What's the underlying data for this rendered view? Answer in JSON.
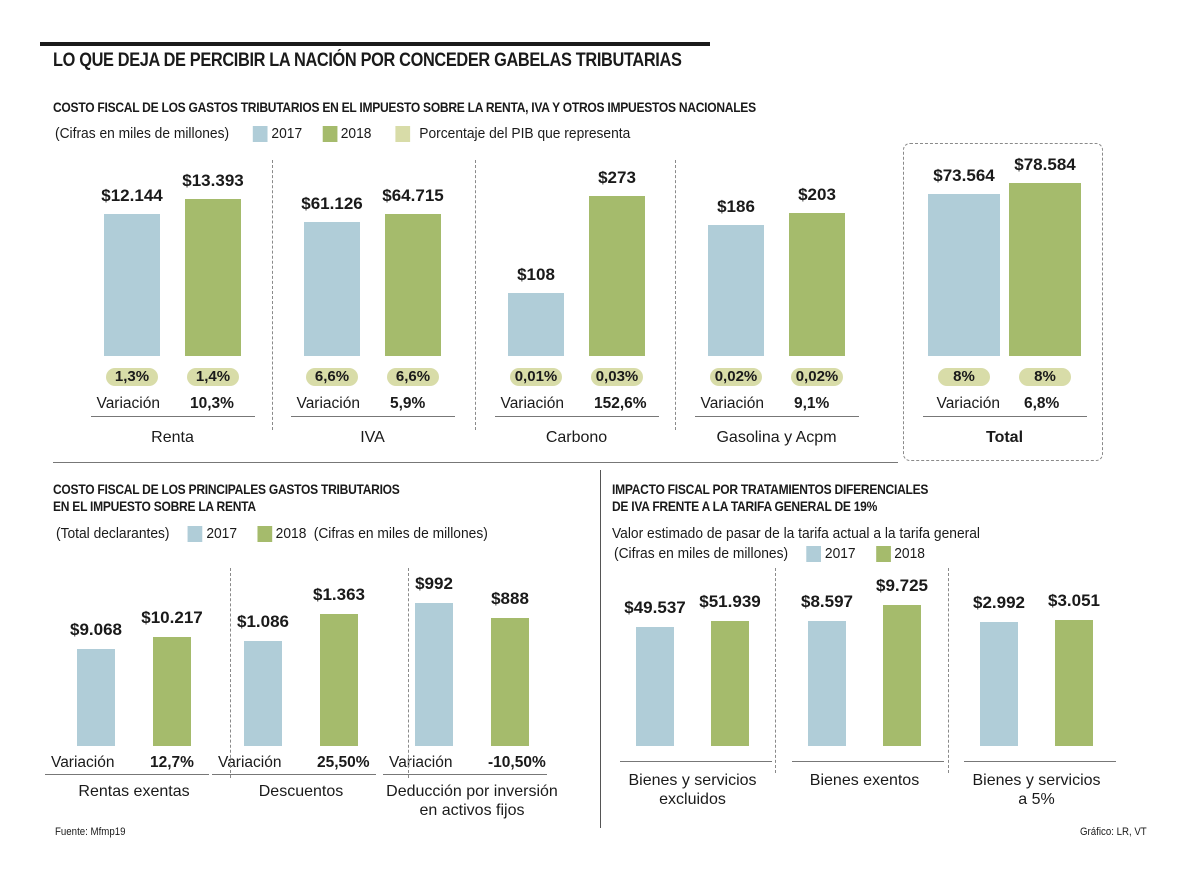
{
  "title": "LO QUE DEJA DE PERCIBIR LA NACIÓN POR CONCEDER GABELAS TRIBUTARIAS",
  "colors": {
    "y2017": "#b0cdd8",
    "y2018": "#a5bb6c",
    "pib": "#d8dca8"
  },
  "section1": {
    "title": "COSTO FISCAL DE LOS GASTOS TRIBUTARIOS EN EL IMPUESTO SOBRE LA RENTA, IVA Y OTROS IMPUESTOS NACIONALES",
    "legend": {
      "units": "(Cifras en miles de millones)",
      "y2017": "2017",
      "y2018": "2018",
      "pib": "Porcentaje del PIB que representa"
    },
    "variation_label": "Variación"
  },
  "section2": {
    "title_line1": "COSTO FISCAL DE LOS PRINCIPALES GASTOS TRIBUTARIOS",
    "title_line2": "EN EL IMPUESTO SOBRE LA RENTA",
    "legend": {
      "prefix": "(Total declarantes)",
      "y2017": "2017",
      "y2018": "2018",
      "units": "(Cifras en miles de millones)"
    },
    "variation_label": "Variación"
  },
  "section3": {
    "title_line1": "IMPACTO FISCAL POR TRATAMIENTOS DIFERENCIALES",
    "title_line2": "DE IVA FRENTE A LA TARIFA GENERAL DE 19%",
    "subtitle": "Valor estimado de pasar de la tarifa  actual a la tarifa general",
    "legend": {
      "units": "(Cifras en miles de millones)",
      "y2017": "2017",
      "y2018": "2018"
    }
  },
  "footer": {
    "source": "Fuente: Mfmp19",
    "credit": "Gráfico: LR, VT"
  },
  "chart_data": [
    {
      "type": "bar",
      "title": "COSTO FISCAL DE LOS GASTOS TRIBUTARIOS EN EL IMPUESTO SOBRE LA RENTA, IVA Y OTROS IMPUESTOS NACIONALES",
      "units": "miles de millones",
      "categories": [
        "Renta",
        "IVA",
        "Carbono",
        "Gasolina y Acpm",
        "Total"
      ],
      "series": [
        {
          "name": "2017",
          "values": [
            12144,
            61126,
            108,
            186,
            73564
          ],
          "labels": [
            "$12.144",
            "$61.126",
            "$108",
            "$186",
            "$73.564"
          ],
          "pib": [
            "1,3%",
            "6,6%",
            "0,01%",
            "0,02%",
            "8%"
          ]
        },
        {
          "name": "2018",
          "values": [
            13393,
            64715,
            273,
            203,
            78584
          ],
          "labels": [
            "$13.393",
            "$64.715",
            "$273",
            "$203",
            "$78.584"
          ],
          "pib": [
            "1,4%",
            "6,6%",
            "0,03%",
            "0,02%",
            "8%"
          ]
        }
      ],
      "variation": [
        "10,3%",
        "5,9%",
        "152,6%",
        "9,1%",
        "6,8%"
      ],
      "scale": "independent per category"
    },
    {
      "type": "bar",
      "title": "COSTO FISCAL DE LOS PRINCIPALES GASTOS TRIBUTARIOS EN EL IMPUESTO SOBRE LA RENTA",
      "units": "miles de millones",
      "categories": [
        "Rentas exentas",
        "Descuentos",
        "Deducción por inversión en activos fijos"
      ],
      "category_lines": [
        [
          "Rentas exentas"
        ],
        [
          "Descuentos"
        ],
        [
          "Deducción por inversión",
          "en activos fijos"
        ]
      ],
      "series": [
        {
          "name": "2017",
          "values": [
            9068,
            1086,
            992
          ],
          "labels": [
            "$9.068",
            "$1.086",
            "$992"
          ]
        },
        {
          "name": "2018",
          "values": [
            10217,
            1363,
            888
          ],
          "labels": [
            "$10.217",
            "$1.363",
            "$888"
          ]
        }
      ],
      "variation": [
        "12,7%",
        "25,50%",
        "-10,50%"
      ],
      "scale": "independent per category"
    },
    {
      "type": "bar",
      "title": "IMPACTO FISCAL POR TRATAMIENTOS DIFERENCIALES DE IVA FRENTE A LA TARIFA GENERAL DE 19%",
      "units": "miles de millones",
      "categories": [
        "Bienes y servicios excluidos",
        "Bienes exentos",
        "Bienes y servicios a 5%"
      ],
      "category_lines": [
        [
          "Bienes y servicios",
          "excluidos"
        ],
        [
          "Bienes exentos"
        ],
        [
          "Bienes y servicios",
          "a 5%"
        ]
      ],
      "series": [
        {
          "name": "2017",
          "values": [
            49537,
            8597,
            2992
          ],
          "labels": [
            "$49.537",
            "$8.597",
            "$2.992"
          ]
        },
        {
          "name": "2018",
          "values": [
            51939,
            9725,
            3051
          ],
          "labels": [
            "$51.939",
            "$9.725",
            "$3.051"
          ]
        }
      ],
      "scale": "independent per category"
    }
  ]
}
